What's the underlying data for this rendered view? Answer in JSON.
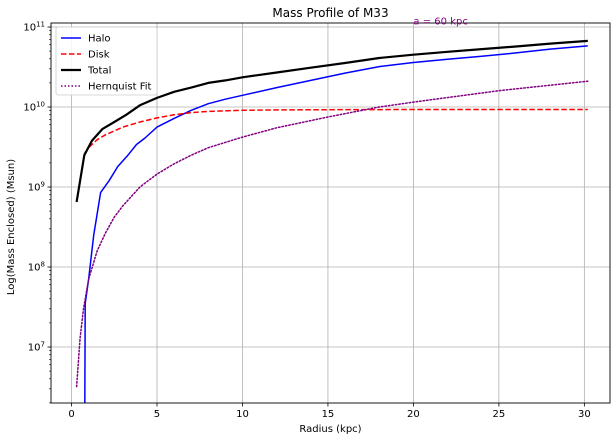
{
  "chart_data": {
    "type": "line",
    "title": "Mass Profile of M33",
    "xlabel": "Radius (kpc)",
    "ylabel": "Log(Mass Enclosed) (Msun)",
    "xlim": [
      -1.2,
      31.5
    ],
    "ylim_log10": [
      6.3,
      11.05
    ],
    "yscale": "log",
    "grid": true,
    "legend_position": "upper-left",
    "xticks": [
      {
        "value": 0,
        "label": "0"
      },
      {
        "value": 5,
        "label": "5"
      },
      {
        "value": 10,
        "label": "10"
      },
      {
        "value": 15,
        "label": "15"
      },
      {
        "value": 20,
        "label": "20"
      },
      {
        "value": 25,
        "label": "25"
      },
      {
        "value": 30,
        "label": "30"
      }
    ],
    "yticks": [
      {
        "exp": 7,
        "base": "10",
        "sup": "7"
      },
      {
        "exp": 8,
        "base": "10",
        "sup": "8"
      },
      {
        "exp": 9,
        "base": "10",
        "sup": "9"
      },
      {
        "exp": 10,
        "base": "10",
        "sup": "10"
      },
      {
        "exp": 11,
        "base": "10",
        "sup": "11"
      }
    ],
    "annotation": {
      "text": "a = 60 kpc",
      "x": 20,
      "y_log10": 11.03,
      "color": "#800080"
    },
    "series": [
      {
        "name": "Halo",
        "color": "#0000ff",
        "style": "solid",
        "width": 1.5,
        "x": [
          0.78,
          0.8,
          1.0,
          1.3,
          1.7,
          2.2,
          2.7,
          3.3,
          3.8,
          4.3,
          5.0,
          6.0,
          7.0,
          8.0,
          9.0,
          10.0,
          12.0,
          14.0,
          16.0,
          18.0,
          20.0,
          22.0,
          24.0,
          26.0,
          28.0,
          30.2
        ],
        "y": [
          1800000.0,
          35000000.0,
          70000000.0,
          250000000.0,
          850000000.0,
          1200000000.0,
          1800000000.0,
          2500000000.0,
          3400000000.0,
          4100000000.0,
          5600000000.0,
          7200000000.0,
          9100000000.0,
          11000000000.0,
          12500000000.0,
          14000000000.0,
          17500000000.0,
          21500000000.0,
          26500000000.0,
          32000000000.0,
          36000000000.0,
          39500000000.0,
          43000000000.0,
          47500000000.0,
          53000000000.0,
          58000000000.0
        ]
      },
      {
        "name": "Disk",
        "color": "#ff0000",
        "style": "dashed",
        "width": 1.5,
        "x": [
          0.75,
          1.0,
          1.5,
          2.0,
          3.0,
          4.0,
          5.0,
          6.0,
          7.0,
          8.0,
          10.0,
          12.0,
          15.0,
          20.0,
          25.0,
          30.2
        ],
        "y": [
          2600000000.0,
          3100000000.0,
          3900000000.0,
          4500000000.0,
          5600000000.0,
          6500000000.0,
          7300000000.0,
          8000000000.0,
          8500000000.0,
          8800000000.0,
          9100000000.0,
          9200000000.0,
          9250000000.0,
          9300000000.0,
          9300000000.0,
          9300000000.0
        ]
      },
      {
        "name": "Total",
        "color": "#000000",
        "style": "solid",
        "width": 2.2,
        "x": [
          0.3,
          0.75,
          1.2,
          1.8,
          2.5,
          3.2,
          4.0,
          5.0,
          6.0,
          7.0,
          8.0,
          9.0,
          10.0,
          12.0,
          14.0,
          16.0,
          18.0,
          20.0,
          22.0,
          24.0,
          26.0,
          28.0,
          30.2
        ],
        "y": [
          650000000.0,
          2500000000.0,
          3800000000.0,
          5300000000.0,
          6500000000.0,
          8000000000.0,
          10500000000.0,
          13000000000.0,
          15500000000.0,
          17500000000.0,
          20000000000.0,
          21500000000.0,
          23500000000.0,
          27000000000.0,
          31000000000.0,
          35500000000.0,
          41000000000.0,
          45000000000.0,
          49000000000.0,
          53000000000.0,
          57000000000.0,
          62000000000.0,
          67000000000.0
        ]
      },
      {
        "name": "Hernquist Fit",
        "color": "#800080",
        "style": "dotted",
        "width": 1.5,
        "x": [
          0.3,
          0.5,
          0.7,
          1.0,
          1.5,
          2.0,
          2.5,
          3.0,
          4.0,
          5.0,
          6.0,
          7.0,
          8.0,
          10.0,
          12.0,
          15.0,
          18.0,
          20.0,
          25.0,
          30.2
        ],
        "y": [
          3200000.0,
          13000000.0,
          30000000.0,
          70000000.0,
          160000000.0,
          270000000.0,
          420000000.0,
          580000000.0,
          1000000000.0,
          1450000000.0,
          1950000000.0,
          2500000000.0,
          3100000000.0,
          4200000000.0,
          5500000000.0,
          7500000000.0,
          10000000000.0,
          11500000000.0,
          16000000000.0,
          21000000000.0
        ]
      }
    ]
  }
}
